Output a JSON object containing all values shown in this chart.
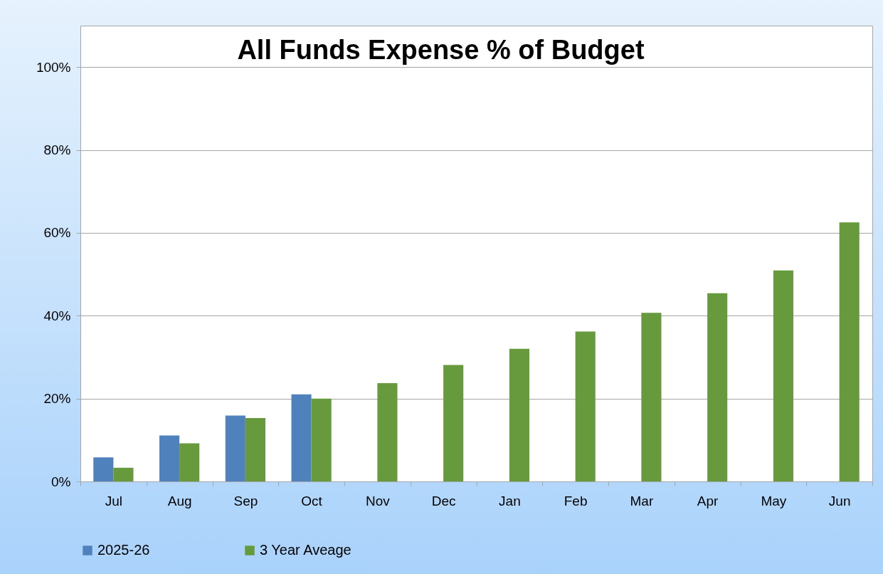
{
  "chart_data": {
    "type": "bar",
    "title": "All Funds Expense % of Budget",
    "categories": [
      "Jul",
      "Aug",
      "Sep",
      "Oct",
      "Nov",
      "Dec",
      "Jan",
      "Feb",
      "Mar",
      "Apr",
      "May",
      "Jun"
    ],
    "series": [
      {
        "name": "2025-26",
        "color": "#4f81bd",
        "values": [
          5.8,
          11.1,
          15.9,
          21.0,
          null,
          null,
          null,
          null,
          null,
          null,
          null,
          null
        ]
      },
      {
        "name": "3 Year Aveage",
        "color": "#669a3c",
        "values": [
          3.3,
          9.2,
          15.3,
          20.0,
          23.7,
          28.1,
          32.0,
          36.2,
          40.7,
          45.4,
          50.9,
          62.5
        ]
      }
    ],
    "ylim": [
      0,
      110
    ],
    "yticks": [
      {
        "value": 0,
        "label": "0%"
      },
      {
        "value": 20,
        "label": "20%"
      },
      {
        "value": 40,
        "label": "40%"
      },
      {
        "value": 60,
        "label": "60%"
      },
      {
        "value": 80,
        "label": "80%"
      },
      {
        "value": 100,
        "label": "100%"
      }
    ],
    "grid": "y",
    "legend": "bottom"
  }
}
